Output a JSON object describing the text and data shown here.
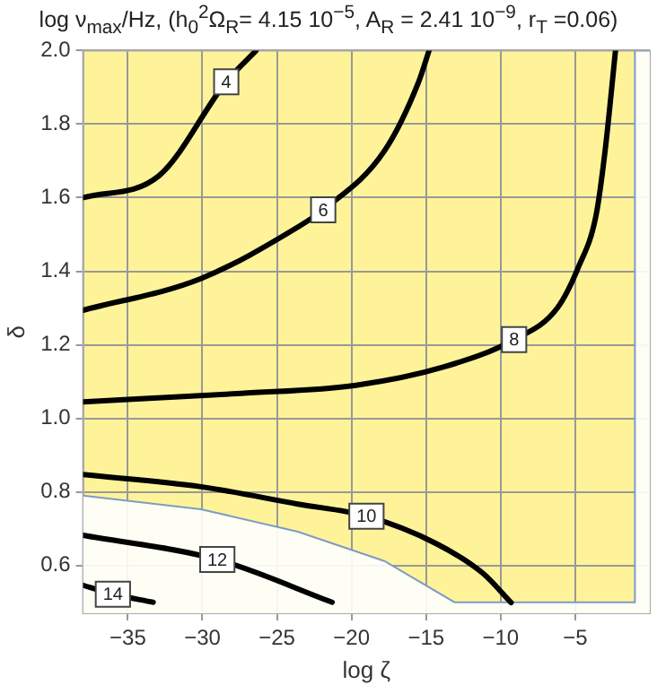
{
  "chart_data": {
    "type": "line",
    "title": "log ν$_{max}$/Hz, (h$_{0}$$^{2}$Ω$_{R}$= 4.15 10$^{−5}$,  A$_{R}$ = 2.41 10$^{−9}$, r$_{T}$ =0.06)",
    "xlabel": "log ζ",
    "ylabel": "δ",
    "xlim": [
      -38,
      0
    ],
    "ylim": [
      0.47,
      2.0
    ],
    "xticks": [
      -35,
      -30,
      -25,
      -20,
      -15,
      -10,
      -5
    ],
    "yticks": [
      0.6,
      0.8,
      {
        "value": 1,
        "label": "1.0"
      },
      1.2,
      1.4,
      1.6,
      1.8,
      {
        "value": 2,
        "label": "2.0"
      }
    ],
    "grid": true,
    "legend": false,
    "marker": "none",
    "line_style": "solid",
    "series": [
      {
        "type": "area",
        "color": "#7e9cc4",
        "x": [
          -38,
          -30.1,
          -23.6,
          -17.8,
          -13.1,
          -1,
          -1,
          0
        ],
        "values": [
          0.79,
          0.753,
          0.692,
          0.612,
          0.5,
          0.5,
          2.0,
          2.0
        ]
      },
      {
        "color": "#000000",
        "x": [
          -38,
          -32.9,
          -28.4,
          -26.4
        ],
        "values": [
          1.6,
          1.66,
          1.915,
          2.0
        ]
      },
      {
        "color": "#000000",
        "x": [
          -38,
          -30.1,
          -23.6,
          -21.9,
          -17.8,
          -15.5,
          -14.8
        ],
        "values": [
          1.294,
          1.38,
          1.52,
          1.567,
          1.727,
          1.915,
          2.0
        ]
      },
      {
        "color": "#000000",
        "x": [
          -38,
          -27.4,
          -19.7,
          -13.8,
          -9.1,
          -6.2,
          -4.8,
          -3.6,
          -3.0,
          -2.3
        ],
        "values": [
          1.045,
          1.068,
          1.09,
          1.14,
          1.214,
          1.3,
          1.41,
          1.553,
          1.727,
          2.0
        ]
      },
      {
        "color": "#000000",
        "x": [
          -38,
          -30.1,
          -23.6,
          -19,
          -14.3,
          -11.2,
          -9.3
        ],
        "values": [
          0.847,
          0.814,
          0.767,
          0.734,
          0.659,
          0.579,
          0.499
        ]
      },
      {
        "color": "#000000",
        "x": [
          -38,
          -29,
          -21.3
        ],
        "values": [
          0.682,
          0.616,
          0.5
        ]
      },
      {
        "color": "#000000",
        "x": [
          -38,
          -36,
          -33.3
        ],
        "values": [
          0.546,
          0.522,
          0.5
        ]
      }
    ],
    "annotations": [
      {
        "text": "4",
        "x": -28.4,
        "y": 1.915
      },
      {
        "text": "6",
        "x": -21.9,
        "y": 1.567
      },
      {
        "text": "8",
        "x": -9.1,
        "y": 1.214
      },
      {
        "text": "10",
        "x": -19,
        "y": 0.734
      },
      {
        "text": "12",
        "x": -29,
        "y": 0.616
      },
      {
        "text": "14",
        "x": -36,
        "y": 0.522
      }
    ]
  }
}
